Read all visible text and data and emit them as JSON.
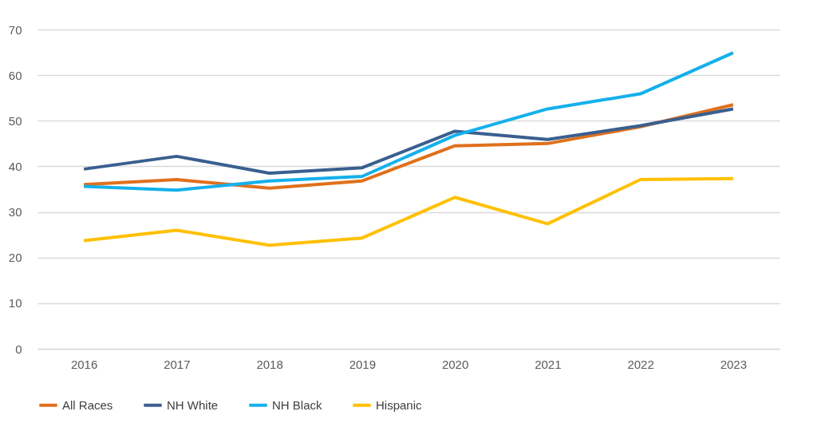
{
  "chart_data": {
    "type": "line",
    "categories": [
      "2016",
      "2017",
      "2018",
      "2019",
      "2020",
      "2021",
      "2022",
      "2023"
    ],
    "series": [
      {
        "name": "All Races",
        "color": "#e0701c",
        "values": [
          36.0,
          37.1,
          35.2,
          36.8,
          44.5,
          45.0,
          48.7,
          53.5
        ]
      },
      {
        "name": "NH White",
        "color": "#3a5f8f",
        "values": [
          39.4,
          42.2,
          38.5,
          39.7,
          47.7,
          45.9,
          48.9,
          52.6
        ]
      },
      {
        "name": "NH Black",
        "color": "#14b0ec",
        "values": [
          35.6,
          34.8,
          36.8,
          37.8,
          46.8,
          52.6,
          55.9,
          64.9
        ]
      },
      {
        "name": "Hispanic",
        "color": "#ffc000",
        "values": [
          23.7,
          26.0,
          22.7,
          24.3,
          33.2,
          27.4,
          37.1,
          37.3
        ]
      }
    ],
    "ylim": [
      0,
      70
    ],
    "yticks": [
      0,
      10,
      20,
      30,
      40,
      50,
      60,
      70
    ],
    "grid": "y",
    "legend": "bottom",
    "marker": "none",
    "line_style": "solid"
  }
}
